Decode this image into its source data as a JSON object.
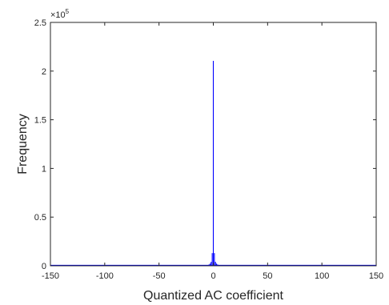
{
  "chart_data": {
    "type": "bar",
    "title": "",
    "xlabel": "Quantized AC coefficient",
    "ylabel": "Frequency",
    "xlim": [
      -150,
      150
    ],
    "ylim": [
      0,
      250000
    ],
    "xticks": [
      -150,
      -100,
      -50,
      0,
      50,
      100,
      150
    ],
    "xtick_labels": [
      "-150",
      "-100",
      "-50",
      "0",
      "50",
      "100",
      "150"
    ],
    "yticks": [
      0,
      50000,
      100000,
      150000,
      200000,
      250000
    ],
    "ytick_labels": [
      "0",
      "0.5",
      "1",
      "1.5",
      "2",
      "2.5"
    ],
    "y_exponent": {
      "base": "×10",
      "power": "5"
    },
    "grid": false,
    "bar_color": "#0000ff",
    "x": [
      -5,
      -4,
      -3,
      -2,
      -1,
      0,
      1,
      2,
      3,
      4,
      5
    ],
    "values": [
      800,
      1300,
      2200,
      4000,
      13000,
      210500,
      13000,
      4000,
      2200,
      1300,
      800
    ]
  }
}
